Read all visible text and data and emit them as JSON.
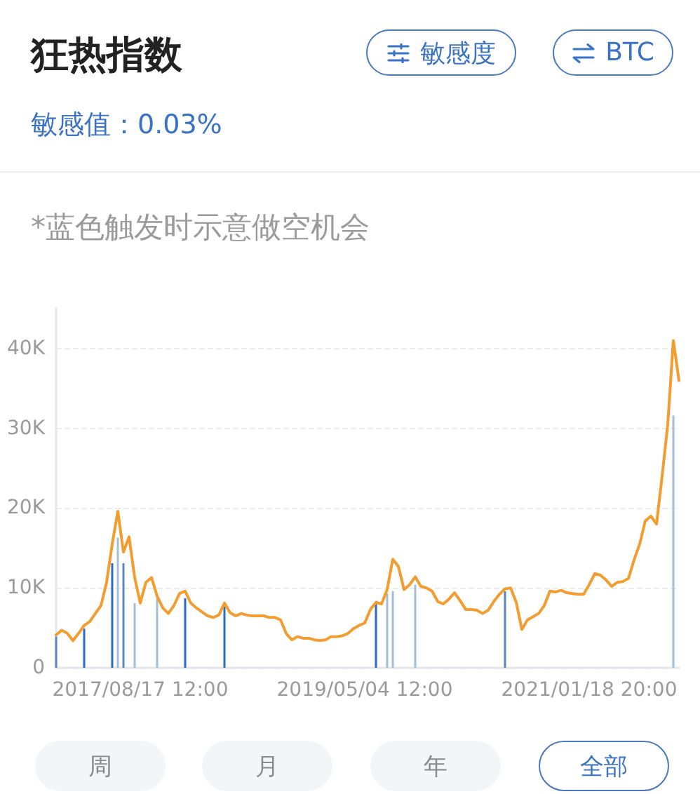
{
  "chart_data": {
    "type": "line",
    "title": "狂热指数",
    "subtitle": "敏感值：0.03%",
    "annotations": [
      "敏感度",
      "BTC",
      "*蓝色触发时示意做空机会",
      "周",
      "月",
      "年",
      "全部"
    ],
    "categories": [
      null,
      null,
      null,
      null,
      null,
      null,
      null,
      null,
      null,
      null,
      null,
      null,
      null,
      null,
      null,
      "2017/08/17 12:00",
      null,
      null,
      null,
      null,
      null,
      null,
      null,
      null,
      null,
      null,
      null,
      null,
      null,
      null,
      null,
      null,
      null,
      null,
      null,
      null,
      null,
      null,
      null,
      null,
      null,
      null,
      null,
      null,
      null,
      null,
      null,
      null,
      null,
      null,
      null,
      null,
      null,
      null,
      null,
      "2019/05/04 12:00",
      null,
      null,
      null,
      null,
      null,
      null,
      null,
      null,
      null,
      null,
      null,
      null,
      null,
      null,
      null,
      null,
      null,
      null,
      null,
      null,
      null,
      null,
      null,
      null,
      null,
      null,
      null,
      null,
      null,
      null,
      null,
      null,
      null,
      null,
      null,
      null,
      null,
      null,
      null,
      "2021/01/18 20:00",
      null,
      null,
      null,
      null,
      null,
      null,
      null,
      null,
      null,
      null,
      null,
      null,
      null,
      null,
      null,
      null
    ],
    "series": [
      {
        "type": "line",
        "color": "#f39c30",
        "values": [
          4100,
          4700,
          4300,
          3400,
          4300,
          5300,
          5800,
          6800,
          7800,
          10700,
          15500,
          19600,
          14500,
          16400,
          11300,
          8100,
          10700,
          11300,
          9000,
          7500,
          6800,
          7800,
          9300,
          9600,
          8100,
          7500,
          7000,
          6500,
          6300,
          6600,
          8100,
          6900,
          6500,
          6800,
          6600,
          6500,
          6500,
          6500,
          6300,
          6300,
          6000,
          4300,
          3500,
          3900,
          3700,
          3700,
          3500,
          3400,
          3500,
          3900,
          3900,
          4000,
          4300,
          4900,
          5300,
          5600,
          7300,
          8200,
          8000,
          9800,
          13600,
          12700,
          9800,
          10400,
          11400,
          10200,
          10000,
          9600,
          8300,
          8000,
          8600,
          9400,
          8400,
          7300,
          7300,
          7200,
          6800,
          7200,
          8300,
          9200,
          9900,
          10000,
          8200,
          4800,
          6000,
          6400,
          6800,
          7800,
          9600,
          9500,
          9700,
          9400,
          9300,
          9200,
          9200,
          10400,
          11800,
          11600,
          11000,
          10200,
          10700,
          10800,
          11200,
          13500,
          15500,
          18400,
          19000,
          18000,
          24000,
          30500,
          41000,
          36000
        ]
      },
      {
        "type": "bar",
        "values": [
          3900,
          null,
          null,
          null,
          null,
          4900,
          null,
          null,
          null,
          null,
          13100,
          16300,
          13100,
          null,
          8100,
          null,
          null,
          null,
          8700,
          null,
          null,
          null,
          null,
          8700,
          null,
          null,
          null,
          null,
          null,
          null,
          7800,
          null,
          null,
          null,
          null,
          null,
          null,
          null,
          null,
          null,
          null,
          null,
          null,
          null,
          null,
          null,
          null,
          null,
          null,
          null,
          null,
          null,
          null,
          null,
          null,
          null,
          null,
          8100,
          null,
          9300,
          9600,
          null,
          null,
          null,
          10400,
          null,
          null,
          null,
          null,
          null,
          null,
          null,
          null,
          null,
          null,
          null,
          null,
          null,
          null,
          null,
          9600,
          null,
          null,
          null,
          null,
          null,
          null,
          null,
          null,
          null,
          null,
          null,
          null,
          null,
          null,
          null,
          null,
          null,
          null,
          null,
          null,
          null,
          null,
          null,
          null,
          null,
          null,
          null,
          null,
          null,
          31600,
          null
        ],
        "colors": [
          "#5a86c0",
          null,
          null,
          null,
          null,
          "#2c6bc4",
          null,
          null,
          null,
          null,
          "#2c6bc4",
          "#a8bcd4",
          "#5a86c0",
          null,
          "#a8bcd4",
          null,
          null,
          null,
          "#a8bcd4",
          null,
          null,
          null,
          null,
          "#2c6bc4",
          null,
          null,
          null,
          null,
          null,
          null,
          "#2c6bc4",
          null,
          null,
          null,
          null,
          null,
          null,
          null,
          null,
          null,
          null,
          null,
          null,
          null,
          null,
          null,
          null,
          null,
          null,
          null,
          null,
          null,
          null,
          null,
          null,
          null,
          null,
          "#2c6bc4",
          null,
          "#a8bcd4",
          "#a8bcd4",
          null,
          null,
          null,
          "#a8bcd4",
          null,
          null,
          null,
          null,
          null,
          null,
          null,
          null,
          null,
          null,
          null,
          null,
          null,
          null,
          null,
          "#5a86c0",
          null,
          null,
          null,
          null,
          null,
          null,
          null,
          null,
          null,
          null,
          null,
          null,
          null,
          null,
          null,
          null,
          null,
          null,
          null,
          null,
          null,
          null,
          null,
          null,
          null,
          null,
          null,
          null,
          null,
          "#a8bcd4",
          null
        ]
      }
    ],
    "ylim": [
      0,
      45000
    ],
    "yticks": [
      0,
      {
        "value": 10000,
        "label": "10K"
      },
      {
        "value": 20000,
        "label": "20K"
      },
      {
        "value": 30000,
        "label": "30K"
      },
      {
        "value": 40000,
        "label": "40K"
      }
    ],
    "grid": "y",
    "marker": "none"
  }
}
